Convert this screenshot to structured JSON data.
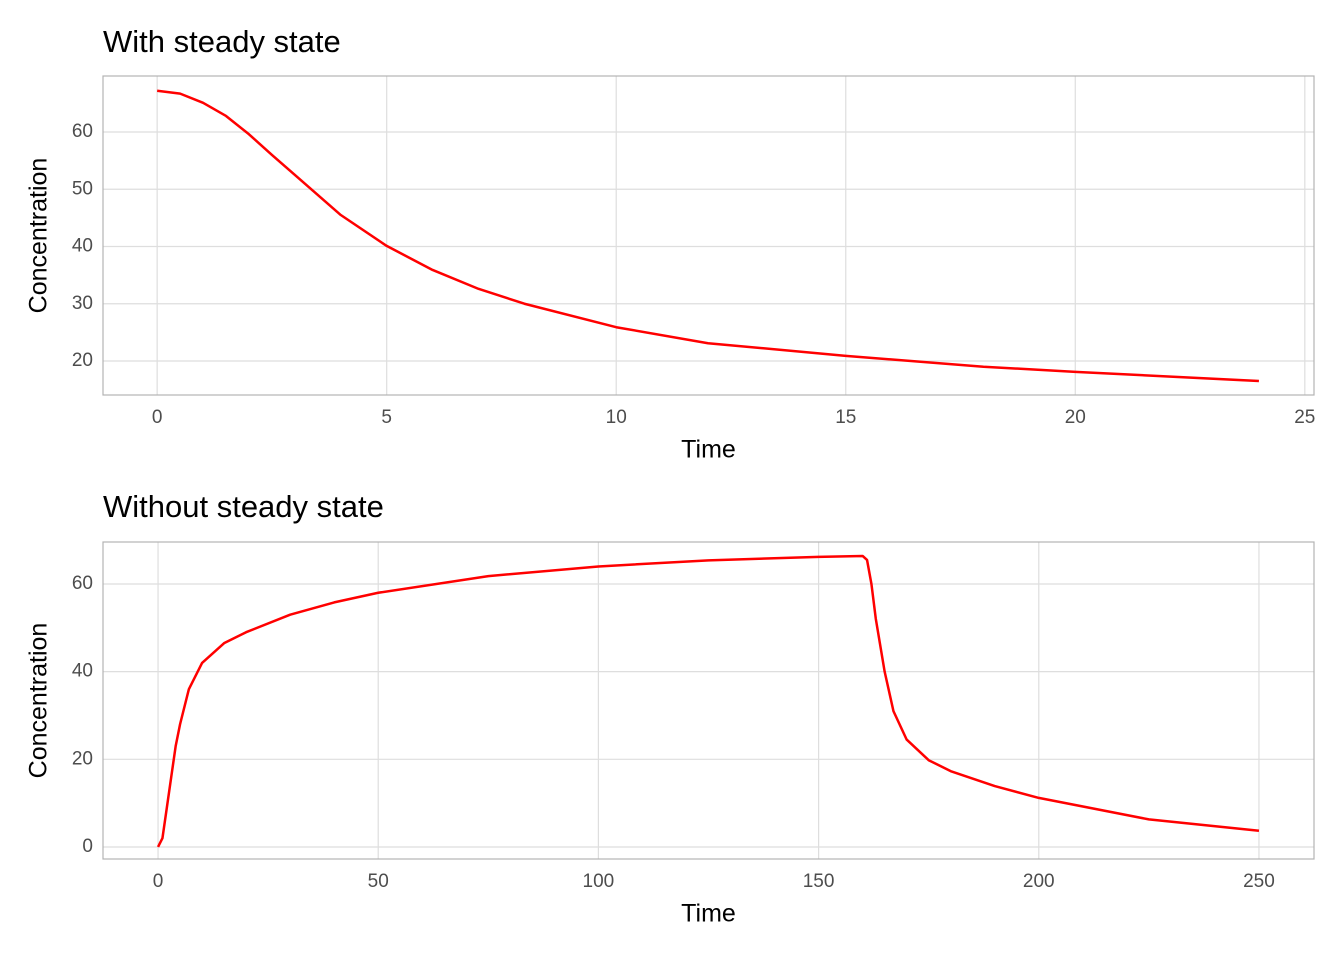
{
  "chart_data": [
    {
      "type": "line",
      "title": "With steady state",
      "x_label": "Time",
      "y_label": "Concentration",
      "x": [
        0,
        0.5,
        1,
        1.5,
        2,
        2.5,
        3,
        4,
        5,
        6,
        7,
        8,
        10,
        12,
        15,
        18,
        20,
        24
      ],
      "series": [
        {
          "name": "Concentration",
          "color": "#ff0000",
          "values": [
            67.2,
            66.7,
            65.1,
            62.8,
            59.6,
            56,
            52.5,
            45.5,
            40.1,
            35.9,
            32.6,
            30,
            25.9,
            23.1,
            20.9,
            19,
            18.1,
            16.5
          ]
        }
      ],
      "xlim": [
        -1.18,
        25.2
      ],
      "ylim": [
        14.06,
        69.78
      ],
      "xticks": [
        0,
        5,
        10,
        15,
        20,
        25
      ],
      "yticks": [
        20,
        30,
        40,
        50,
        60
      ],
      "grid": true
    },
    {
      "type": "line",
      "title": "Without steady state",
      "x_label": "Time",
      "y_label": "Concentration",
      "x": [
        0,
        1,
        2,
        3,
        4,
        5,
        7,
        10,
        15,
        20,
        30,
        40,
        50,
        75,
        100,
        125,
        150,
        160,
        161,
        162,
        163,
        165,
        167,
        170,
        175,
        180,
        190,
        200,
        225,
        250
      ],
      "series": [
        {
          "name": "Concentration",
          "color": "#ff0000",
          "values": [
            0,
            2,
            9,
            16,
            23,
            28,
            36,
            42,
            46.5,
            49,
            53,
            55.8,
            58,
            61.8,
            64,
            65.4,
            66.2,
            66.4,
            65.5,
            60,
            52,
            40,
            31,
            24.5,
            19.8,
            17.3,
            13.9,
            11.2,
            6.3,
            3.7
          ]
        }
      ],
      "xlim": [
        -12.5,
        262.5
      ],
      "ylim": [
        -2.74,
        69.58
      ],
      "xticks": [
        0,
        50,
        100,
        150,
        200,
        250
      ],
      "yticks": [
        0,
        20,
        40,
        60
      ],
      "grid": true
    }
  ]
}
